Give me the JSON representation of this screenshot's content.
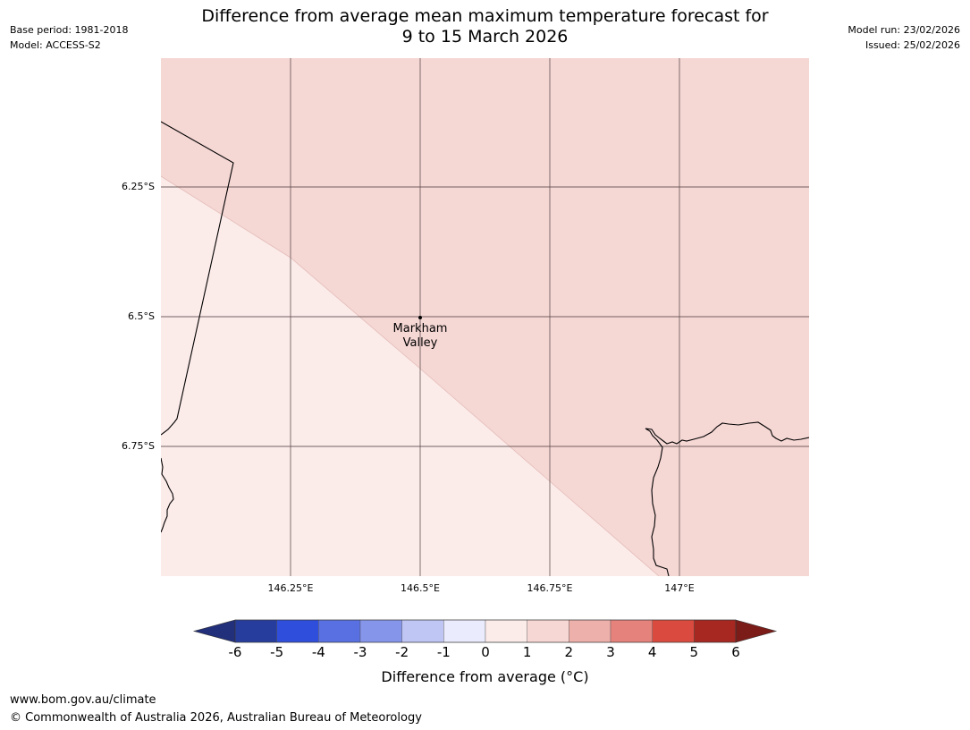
{
  "header": {
    "title_line1": "Difference from average mean maximum temperature forecast for",
    "title_line2": "9 to 15 March 2026",
    "base_period": "Base period: 1981-2018",
    "model": "Model: ACCESS-S2",
    "model_run": "Model run: 23/02/2026",
    "issued": "Issued: 25/02/2026"
  },
  "map": {
    "lat_labels": [
      "6.25°S",
      "6.5°S",
      "6.75°S"
    ],
    "lon_labels": [
      "146.25°E",
      "146.5°E",
      "146.75°E",
      "147°E"
    ],
    "place": {
      "name_line1": "Markham",
      "name_line2": "Valley"
    },
    "region_colors": {
      "one_to_two": "#f5d7d4",
      "zero_to_one": "#fbebe9"
    },
    "gridline_color": "#5a4a4a",
    "coastline_color": "#000000"
  },
  "colorbar": {
    "title": "Difference from average ($^\\circ$C)",
    "title_display": "Difference from average (°C)",
    "ticks": [
      "-6",
      "-5",
      "-4",
      "-3",
      "-2",
      "-1",
      "0",
      "1",
      "2",
      "3",
      "4",
      "5",
      "6"
    ],
    "colors": [
      "#263d9e",
      "#2f4edb",
      "#5870e1",
      "#8595ea",
      "#c0c6f4",
      "#eaecfd",
      "#fbebe9",
      "#f7d7d4",
      "#eeb0aa",
      "#e6827c",
      "#db4a3f",
      "#a62820"
    ],
    "under_color": "#222f7a",
    "over_color": "#7b1c18"
  },
  "footer": {
    "url": "www.bom.gov.au/climate",
    "copyright": "© Commonwealth of Australia 2026, Australian Bureau of Meteorology"
  }
}
